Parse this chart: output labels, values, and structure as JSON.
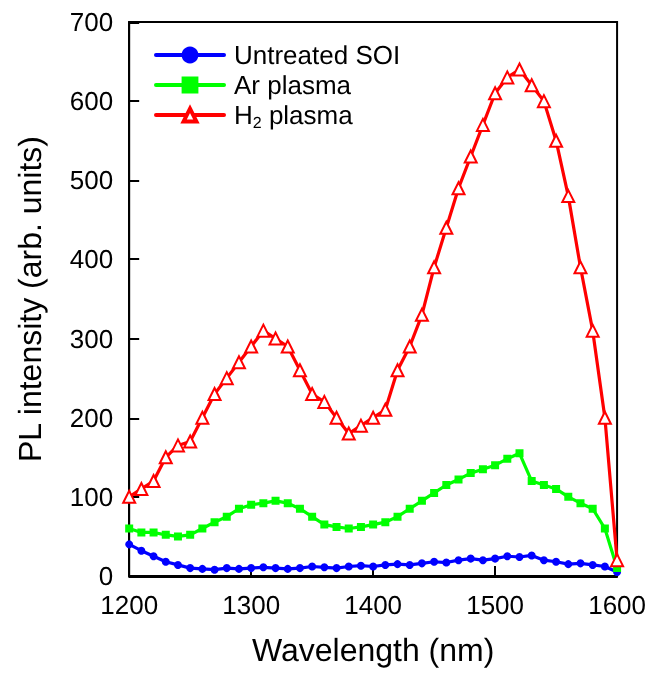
{
  "chart_data": {
    "type": "line",
    "xlabel": "Wavelength (nm)",
    "ylabel": "PL intensity (arb. units)",
    "x": [
      1200,
      1210,
      1220,
      1230,
      1240,
      1250,
      1260,
      1270,
      1280,
      1290,
      1300,
      1310,
      1320,
      1330,
      1340,
      1350,
      1360,
      1370,
      1380,
      1390,
      1400,
      1410,
      1420,
      1430,
      1440,
      1450,
      1460,
      1470,
      1480,
      1490,
      1500,
      1510,
      1520,
      1530,
      1540,
      1550,
      1560,
      1570,
      1580,
      1590,
      1600
    ],
    "series": [
      {
        "name": "Untreated SOI",
        "color": "#0000ff",
        "marker": "circle",
        "values": [
          40,
          32,
          25,
          18,
          14,
          10,
          9,
          8,
          10,
          9,
          10,
          11,
          10,
          9,
          10,
          12,
          11,
          10,
          12,
          13,
          12,
          14,
          15,
          14,
          16,
          18,
          17,
          20,
          22,
          20,
          22,
          25,
          24,
          26,
          20,
          18,
          15,
          16,
          14,
          12,
          5
        ]
      },
      {
        "name": "Ar plasma",
        "color": "#00ff00",
        "marker": "square",
        "values": [
          60,
          55,
          55,
          52,
          50,
          52,
          60,
          68,
          75,
          85,
          90,
          92,
          95,
          92,
          85,
          75,
          65,
          62,
          60,
          62,
          65,
          68,
          75,
          85,
          95,
          105,
          115,
          122,
          130,
          135,
          140,
          148,
          155,
          120,
          115,
          110,
          100,
          92,
          85,
          60,
          10
        ]
      },
      {
        "name": "H$_{2}$ plasma",
        "color": "#ff0000",
        "marker": "triangle",
        "values": [
          100,
          110,
          120,
          150,
          165,
          170,
          200,
          230,
          250,
          270,
          290,
          310,
          300,
          290,
          260,
          230,
          220,
          200,
          180,
          190,
          200,
          210,
          260,
          290,
          330,
          390,
          440,
          490,
          530,
          570,
          610,
          630,
          640,
          620,
          600,
          550,
          480,
          390,
          310,
          200,
          20
        ]
      }
    ],
    "xlim": [
      1200,
      1600
    ],
    "xticks": [
      1200,
      1300,
      1400,
      1500,
      1600
    ],
    "ylim": [
      0,
      700
    ],
    "yticks": [
      0,
      100,
      200,
      300,
      400,
      500,
      600,
      700
    ],
    "legend": "top left",
    "grid": false
  }
}
